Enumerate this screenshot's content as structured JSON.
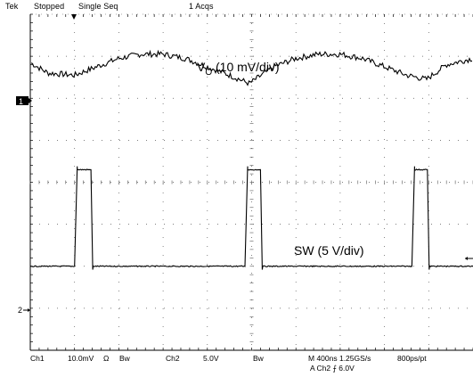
{
  "header": {
    "brand": "Tek",
    "state": "Stopped",
    "mode": "Single Seq",
    "acqs": "1 Acqs"
  },
  "annotations": {
    "vo_label_main": "V",
    "vo_label_sub": "O",
    "vo_label_rest": " (10 mV/div)",
    "sw_label": "SW (5 V/div)"
  },
  "markers": {
    "ch1": "1",
    "ch2": "2"
  },
  "footer": {
    "ch1": "Ch1",
    "ch1_scale": "10.0mV",
    "ch1_coupling": "Ω",
    "ch1_bw": "Bw",
    "ch2": "Ch2",
    "ch2_scale": "5.0V",
    "ch2_bw": "Bw",
    "timebase": "M 400ns  1.25GS/s",
    "record": "800ps/pt",
    "trigger": "A  Ch2  ⨍  6.0V"
  },
  "colors": {
    "trace": "#000000",
    "grid_dots": "#555555",
    "marker_fill": "#000000",
    "marker_text": "#ffffff"
  },
  "chart_data": {
    "type": "line",
    "title": "",
    "x_unit": "div (400 ns/div)",
    "xlim": [
      0,
      10
    ],
    "ylim": [
      -4,
      4
    ],
    "grid": true,
    "series": [
      {
        "name": "VO (10 mV/div)",
        "x": [
          0,
          0.4,
          1.0,
          1.5,
          2.0,
          2.5,
          3.0,
          3.5,
          4.0,
          4.5,
          4.95,
          5.5,
          6.0,
          6.5,
          7.0,
          7.5,
          8.0,
          8.5,
          8.95,
          9.4,
          10.0
        ],
        "y": [
          2.85,
          2.6,
          2.55,
          2.75,
          2.95,
          3.05,
          3.05,
          2.95,
          2.75,
          2.55,
          2.35,
          2.75,
          2.95,
          3.05,
          3.05,
          2.95,
          2.75,
          2.55,
          2.45,
          2.8,
          2.95
        ]
      },
      {
        "name": "SW (5 V/div)",
        "x": [
          0,
          1.0,
          1.07,
          1.3,
          1.37,
          10.0
        ],
        "y": [
          -2.0,
          -2.0,
          0.3,
          0.3,
          -2.0,
          -2.0
        ],
        "pulses": [
          {
            "rise": 1.0,
            "fall": 1.37,
            "top": 0.3
          },
          {
            "rise": 4.85,
            "fall": 5.2,
            "top": 0.3
          },
          {
            "rise": 8.62,
            "fall": 8.97,
            "top": 0.3
          }
        ],
        "baseline": -2.0
      }
    ]
  }
}
